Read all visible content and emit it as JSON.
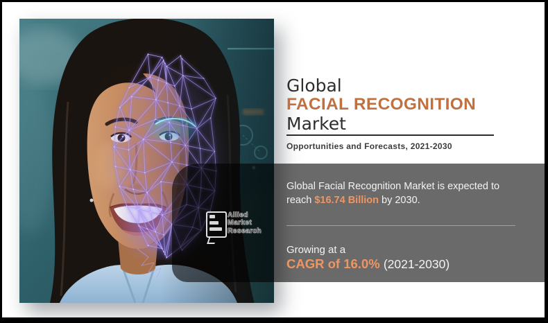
{
  "title": {
    "line1": "Global",
    "line2": "FACIAL RECOGNITION",
    "line3": "Market",
    "subtitle": "Opportunities and Forecasts, 2021-2030"
  },
  "infobox": {
    "statement_line1": "Global Facial Recognition Market is expected to",
    "statement_line2_pre": "reach ",
    "statement_line2_highlight": "$16.74 Billion",
    "statement_line2_post": " by 2030.",
    "growing_label": "Growing at a",
    "cagr_highlight": "CAGR of 16.0%",
    "cagr_period": "(2021-2030)"
  },
  "brand": {
    "line1": "Allied",
    "line2": "Market",
    "line3": "Research",
    "icon": "speech-bubble-bars-icon"
  },
  "photo": {
    "subject": "woman-with-facial-recognition-mesh"
  },
  "colors": {
    "page_background": "#ffffff",
    "frame_border": "#000000",
    "title_text": "#2d2d2d",
    "title_accent": "#c1713f",
    "subtitle_text": "#3b3b3b",
    "panel_overlay": "rgba(0,0,0,0.59)",
    "panel_text": "#f3f3f3",
    "panel_accent": "#ee9663",
    "panel_divider": "#e28c5a",
    "photo_backdrop": "#2f616b",
    "mesh_violet": "#b4a0f6",
    "mesh_cyan": "#5fd3f7"
  }
}
